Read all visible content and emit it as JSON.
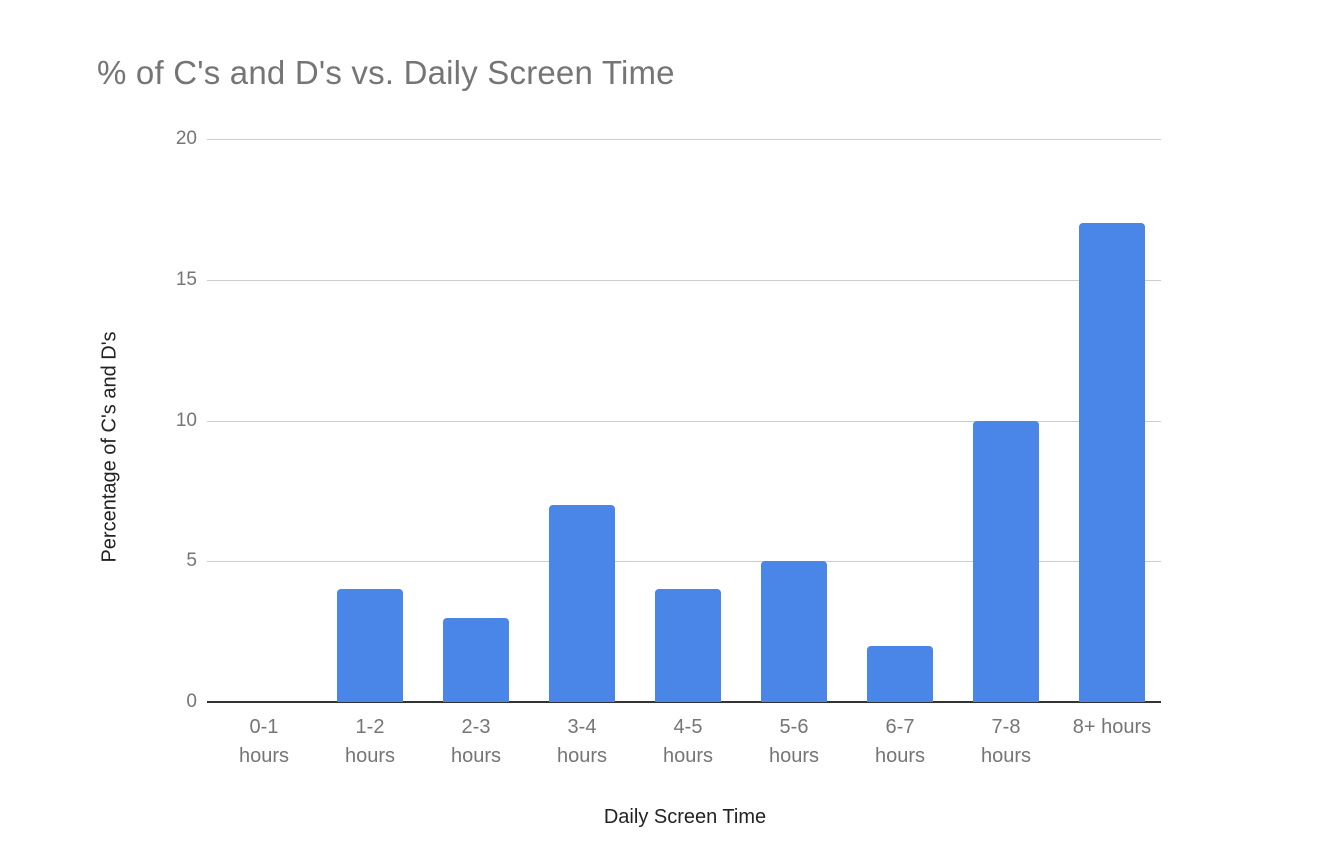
{
  "chart_data": {
    "type": "bar",
    "title": "% of C's and D's vs. Daily Screen Time",
    "xlabel": "Daily Screen Time",
    "ylabel": "Percentage of C's and D's",
    "categories": [
      "0-1 hours",
      "1-2 hours",
      "2-3 hours",
      "3-4 hours",
      "4-5 hours",
      "5-6 hours",
      "6-7 hours",
      "7-8 hours",
      "8+ hours"
    ],
    "category_labels_display": [
      "0-1\nhours",
      "1-2\nhours",
      "2-3\nhours",
      "3-4\nhours",
      "4-5\nhours",
      "5-6\nhours",
      "6-7\nhours",
      "7-8\nhours",
      "8+ hours"
    ],
    "values": [
      0,
      4,
      3,
      7,
      4,
      5,
      2,
      10,
      17
    ],
    "ylim": [
      0,
      20
    ],
    "yticks": [
      0,
      5,
      10,
      15,
      20
    ],
    "grid": true,
    "legend": "none",
    "bar_color": "#4a86e8"
  }
}
